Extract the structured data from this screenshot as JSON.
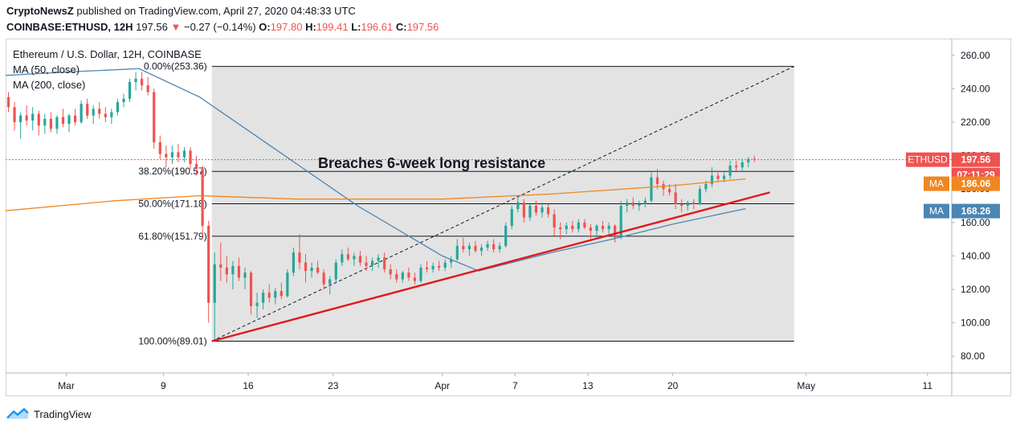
{
  "header": {
    "publisher": "CryptoNewsZ",
    "published_text": "published on TradingView.com, April 27, 2020 04:48:33 UTC",
    "symbol": "COINBASE:ETHUSD, 12H",
    "last": "197.56",
    "arrow": "▼",
    "change": "−0.27 (−0.14%)",
    "o_label": "O:",
    "o_value": "197.80",
    "h_label": "H:",
    "h_value": "199.41",
    "l_label": "L:",
    "l_value": "196.61",
    "c_label": "C:",
    "c_value": "197.56"
  },
  "legend": {
    "title": "Ethereum / U.S. Dollar, 12H, COINBASE",
    "ma50": "MA (50, close)",
    "ma200": "MA (200, close)"
  },
  "annotation": "Breaches 6-week long resistance",
  "price_tags": {
    "ethusd_label": "ETHUSD",
    "ethusd_value": "197.56",
    "countdown": "07:11:29",
    "ma200_label": "MA",
    "ma200_value": "186.06",
    "ma50_label": "MA",
    "ma50_value": "168.26"
  },
  "footer": {
    "brand": "TradingView"
  },
  "colors": {
    "up": "#26a69a",
    "down": "#ef5350",
    "ma50": "#4a86b5",
    "ma200": "#f0861f",
    "trendline": "#e0191b",
    "fib_zone": "#e3e3e3",
    "ethusd_tag": "#ef5350",
    "ma200_tag": "#f0861f",
    "ma50_tag": "#4a86b5"
  },
  "chart_data": {
    "type": "candlestick",
    "title": "Ethereum / U.S. Dollar, 12H, COINBASE",
    "ylim": [
      70,
      270
    ],
    "y_ticks": [
      "80.00",
      "100.00",
      "120.00",
      "140.00",
      "160.00",
      "180.00",
      "200.00",
      "220.00",
      "240.00",
      "260.00"
    ],
    "y_tick_values": [
      80,
      100,
      120,
      140,
      160,
      180,
      200,
      220,
      240,
      260
    ],
    "x_ticks": [
      "Mar",
      "9",
      "16",
      "23",
      "Apr",
      "7",
      "13",
      "20",
      "May",
      "11"
    ],
    "x_tick_dates": [
      "2020-03-01",
      "2020-03-09",
      "2020-03-16",
      "2020-03-23",
      "2020-04-01",
      "2020-04-07",
      "2020-04-13",
      "2020-04-20",
      "2020-05-01",
      "2020-05-11"
    ],
    "x_start": "2020-02-25",
    "x_end": "2020-05-13",
    "candles": [
      [
        "2020-02-25T00",
        235,
        238,
        226,
        229
      ],
      [
        "2020-02-25T12",
        229,
        232,
        215,
        220
      ],
      [
        "2020-02-26T00",
        220,
        226,
        210,
        224
      ],
      [
        "2020-02-26T12",
        224,
        230,
        218,
        221
      ],
      [
        "2020-02-27T00",
        221,
        229,
        215,
        225
      ],
      [
        "2020-02-27T12",
        225,
        227,
        212,
        218
      ],
      [
        "2020-02-28T00",
        218,
        225,
        213,
        222
      ],
      [
        "2020-02-28T12",
        222,
        226,
        214,
        216
      ],
      [
        "2020-02-29T00",
        216,
        224,
        213,
        223
      ],
      [
        "2020-02-29T12",
        223,
        228,
        217,
        219
      ],
      [
        "2020-03-01T00",
        219,
        225,
        214,
        224
      ],
      [
        "2020-03-01T12",
        224,
        228,
        218,
        220
      ],
      [
        "2020-03-02T00",
        220,
        233,
        219,
        231
      ],
      [
        "2020-03-02T12",
        231,
        234,
        222,
        224
      ],
      [
        "2020-03-03T00",
        224,
        230,
        219,
        228
      ],
      [
        "2020-03-03T12",
        228,
        232,
        222,
        225
      ],
      [
        "2020-03-04T00",
        225,
        229,
        220,
        223
      ],
      [
        "2020-03-04T12",
        223,
        228,
        219,
        226
      ],
      [
        "2020-03-05T00",
        226,
        234,
        224,
        232
      ],
      [
        "2020-03-05T12",
        232,
        237,
        229,
        234
      ],
      [
        "2020-03-06T00",
        234,
        246,
        232,
        244
      ],
      [
        "2020-03-06T12",
        244,
        250,
        239,
        246
      ],
      [
        "2020-03-07T00",
        246,
        250,
        239,
        242
      ],
      [
        "2020-03-07T12",
        242,
        247,
        236,
        238
      ],
      [
        "2020-03-08T00",
        238,
        240,
        204,
        208
      ],
      [
        "2020-03-08T12",
        208,
        212,
        198,
        201
      ],
      [
        "2020-03-09T00",
        201,
        206,
        193,
        199
      ],
      [
        "2020-03-09T12",
        199,
        206,
        195,
        202
      ],
      [
        "2020-03-10T00",
        202,
        207,
        196,
        199
      ],
      [
        "2020-03-10T12",
        199,
        205,
        196,
        203
      ],
      [
        "2020-03-11T00",
        203,
        205,
        192,
        195
      ],
      [
        "2020-03-11T12",
        195,
        200,
        188,
        192
      ],
      [
        "2020-03-12T00",
        192,
        194,
        150,
        158
      ],
      [
        "2020-03-12T12",
        158,
        161,
        100,
        112
      ],
      [
        "2020-03-13T00",
        112,
        142,
        89,
        135
      ],
      [
        "2020-03-13T12",
        135,
        148,
        125,
        133
      ],
      [
        "2020-03-14T00",
        133,
        140,
        124,
        129
      ],
      [
        "2020-03-14T12",
        129,
        137,
        120,
        134
      ],
      [
        "2020-03-15T00",
        134,
        139,
        125,
        127
      ],
      [
        "2020-03-15T12",
        127,
        133,
        120,
        130
      ],
      [
        "2020-03-16T00",
        130,
        131,
        105,
        110
      ],
      [
        "2020-03-16T12",
        110,
        118,
        103,
        112
      ],
      [
        "2020-03-17T00",
        112,
        120,
        108,
        118
      ],
      [
        "2020-03-17T12",
        118,
        123,
        112,
        115
      ],
      [
        "2020-03-18T00",
        115,
        121,
        111,
        119
      ],
      [
        "2020-03-18T12",
        119,
        124,
        114,
        116
      ],
      [
        "2020-03-19T00",
        116,
        132,
        115,
        130
      ],
      [
        "2020-03-19T12",
        130,
        145,
        128,
        142
      ],
      [
        "2020-03-20T00",
        142,
        153,
        132,
        136
      ],
      [
        "2020-03-20T12",
        136,
        141,
        124,
        131
      ],
      [
        "2020-03-21T00",
        131,
        136,
        127,
        133
      ],
      [
        "2020-03-21T12",
        133,
        137,
        129,
        130
      ],
      [
        "2020-03-22T00",
        130,
        132,
        120,
        123
      ],
      [
        "2020-03-22T12",
        123,
        128,
        117,
        126
      ],
      [
        "2020-03-23T00",
        126,
        138,
        124,
        136
      ],
      [
        "2020-03-23T12",
        136,
        144,
        134,
        141
      ],
      [
        "2020-03-24T00",
        141,
        145,
        137,
        138
      ],
      [
        "2020-03-24T12",
        138,
        142,
        134,
        140
      ],
      [
        "2020-03-25T00",
        140,
        143,
        134,
        136
      ],
      [
        "2020-03-25T12",
        136,
        140,
        131,
        134
      ],
      [
        "2020-03-26T00",
        134,
        139,
        131,
        137
      ],
      [
        "2020-03-26T12",
        137,
        141,
        133,
        139
      ],
      [
        "2020-03-27T00",
        139,
        142,
        130,
        132
      ],
      [
        "2020-03-27T12",
        132,
        135,
        126,
        129
      ],
      [
        "2020-03-28T00",
        129,
        132,
        124,
        126
      ],
      [
        "2020-03-28T12",
        126,
        131,
        124,
        130
      ],
      [
        "2020-03-29T00",
        130,
        133,
        125,
        127
      ],
      [
        "2020-03-29T12",
        127,
        130,
        123,
        125
      ],
      [
        "2020-03-30T00",
        125,
        135,
        124,
        133
      ],
      [
        "2020-03-30T12",
        133,
        137,
        130,
        132
      ],
      [
        "2020-03-31T00",
        132,
        136,
        130,
        134
      ],
      [
        "2020-03-31T12",
        134,
        137,
        131,
        133
      ],
      [
        "2020-04-01T00",
        133,
        138,
        131,
        136
      ],
      [
        "2020-04-01T12",
        136,
        140,
        133,
        138
      ],
      [
        "2020-04-02T00",
        138,
        150,
        137,
        146
      ],
      [
        "2020-04-02T12",
        146,
        151,
        142,
        144
      ],
      [
        "2020-04-03T00",
        144,
        148,
        140,
        146
      ],
      [
        "2020-04-03T12",
        146,
        149,
        142,
        143
      ],
      [
        "2020-04-04T00",
        143,
        147,
        140,
        145
      ],
      [
        "2020-04-04T12",
        145,
        149,
        143,
        147
      ],
      [
        "2020-04-05T00",
        147,
        150,
        142,
        144
      ],
      [
        "2020-04-05T12",
        144,
        148,
        142,
        146
      ],
      [
        "2020-04-06T00",
        146,
        160,
        145,
        158
      ],
      [
        "2020-04-06T12",
        158,
        170,
        156,
        168
      ],
      [
        "2020-04-07T00",
        168,
        175,
        166,
        172
      ],
      [
        "2020-04-07T12",
        172,
        174,
        160,
        163
      ],
      [
        "2020-04-08T00",
        163,
        171,
        161,
        170
      ],
      [
        "2020-04-08T12",
        170,
        173,
        164,
        166
      ],
      [
        "2020-04-09T00",
        166,
        172,
        163,
        169
      ],
      [
        "2020-04-09T12",
        169,
        171,
        163,
        165
      ],
      [
        "2020-04-10T00",
        165,
        168,
        152,
        157
      ],
      [
        "2020-04-10T12",
        157,
        160,
        150,
        156
      ],
      [
        "2020-04-11T00",
        156,
        160,
        153,
        158
      ],
      [
        "2020-04-11T12",
        158,
        161,
        154,
        156
      ],
      [
        "2020-04-12T00",
        156,
        162,
        154,
        160
      ],
      [
        "2020-04-12T12",
        160,
        162,
        156,
        157
      ],
      [
        "2020-04-13T00",
        157,
        159,
        150,
        155
      ],
      [
        "2020-04-13T12",
        155,
        159,
        151,
        158
      ],
      [
        "2020-04-14T00",
        158,
        161,
        154,
        156
      ],
      [
        "2020-04-14T12",
        156,
        160,
        153,
        158
      ],
      [
        "2020-04-15T00",
        158,
        159,
        148,
        151
      ],
      [
        "2020-04-15T12",
        151,
        173,
        150,
        170
      ],
      [
        "2020-04-16T00",
        170,
        174,
        166,
        172
      ],
      [
        "2020-04-16T12",
        172,
        175,
        168,
        170
      ],
      [
        "2020-04-17T00",
        170,
        173,
        167,
        171
      ],
      [
        "2020-04-17T12",
        171,
        175,
        169,
        173
      ],
      [
        "2020-04-18T00",
        173,
        190,
        172,
        187
      ],
      [
        "2020-04-18T12",
        187,
        192,
        180,
        183
      ],
      [
        "2020-04-19T00",
        183,
        185,
        176,
        180
      ],
      [
        "2020-04-19T12",
        180,
        183,
        176,
        178
      ],
      [
        "2020-04-20T00",
        178,
        183,
        168,
        171
      ],
      [
        "2020-04-20T12",
        171,
        174,
        166,
        170
      ],
      [
        "2020-04-21T00",
        170,
        173,
        167,
        172
      ],
      [
        "2020-04-21T12",
        172,
        174,
        168,
        171
      ],
      [
        "2020-04-22T00",
        171,
        182,
        170,
        180
      ],
      [
        "2020-04-22T12",
        180,
        185,
        178,
        183
      ],
      [
        "2020-04-23T00",
        183,
        193,
        181,
        188
      ],
      [
        "2020-04-23T12",
        188,
        191,
        184,
        186
      ],
      [
        "2020-04-24T00",
        186,
        190,
        184,
        188
      ],
      [
        "2020-04-24T12",
        188,
        197,
        186,
        194
      ],
      [
        "2020-04-25T00",
        194,
        197,
        191,
        193
      ],
      [
        "2020-04-25T12",
        193,
        198,
        191,
        196
      ],
      [
        "2020-04-26T00",
        196,
        199,
        193,
        198
      ],
      [
        "2020-04-26T12",
        198,
        200,
        196,
        197.56
      ]
    ],
    "series": [
      {
        "name": "MA (50, close)",
        "color": "#4a86b5",
        "dates": [
          "2020-02-25",
          "2020-03-01",
          "2020-03-07",
          "2020-03-12",
          "2020-03-18",
          "2020-03-25",
          "2020-04-01",
          "2020-04-04",
          "2020-04-10",
          "2020-04-15",
          "2020-04-20",
          "2020-04-26"
        ],
        "values": [
          248,
          250,
          252,
          235,
          205,
          170,
          140,
          131,
          142,
          150,
          159,
          168.26
        ]
      },
      {
        "name": "MA (200, close)",
        "color": "#f0861f",
        "dates": [
          "2020-02-25",
          "2020-03-05",
          "2020-03-12",
          "2020-03-20",
          "2020-04-01",
          "2020-04-10",
          "2020-04-20",
          "2020-04-26"
        ],
        "values": [
          167,
          173,
          176,
          174,
          174,
          177,
          182,
          186.06
        ]
      }
    ],
    "fib_levels": [
      {
        "label": "0.00%(253.36)",
        "value": 253.36
      },
      {
        "label": "38.20%(190.57)",
        "value": 190.57
      },
      {
        "label": "50.00%(171.18)",
        "value": 171.18
      },
      {
        "label": "61.80%(151.79)",
        "value": 151.79
      },
      {
        "label": "100.00%(89.01)",
        "value": 89.01
      }
    ],
    "fib_range": [
      "2020-03-13",
      "2020-04-30"
    ],
    "trendline": {
      "from": [
        "2020-03-13",
        89
      ],
      "to": [
        "2020-04-28",
        178
      ]
    },
    "projection": {
      "from": [
        "2020-03-13",
        89
      ],
      "to": [
        "2020-04-30",
        253.36
      ]
    },
    "last_price": 197.56
  }
}
